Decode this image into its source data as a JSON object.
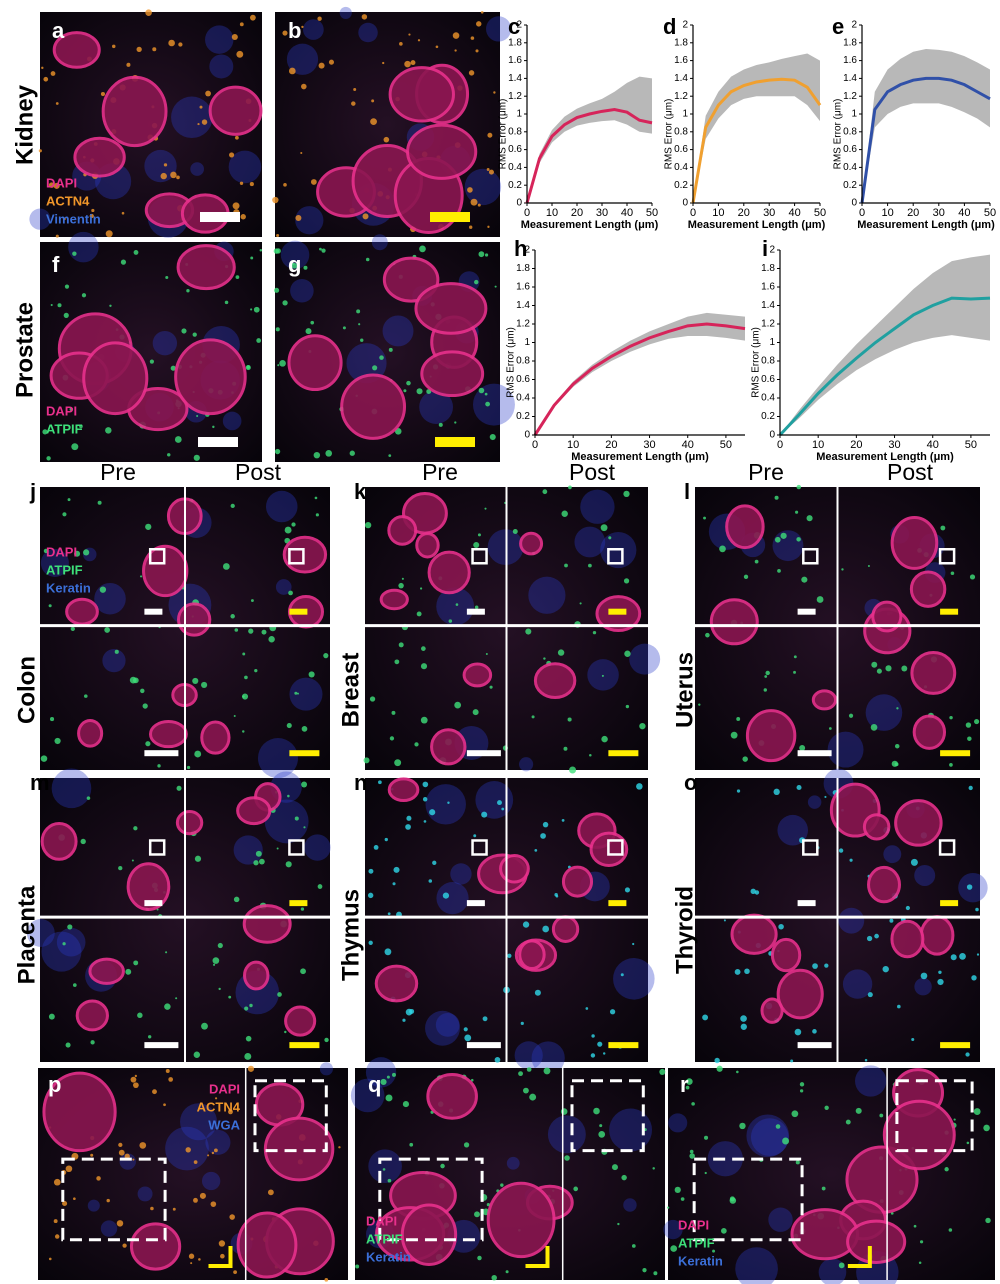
{
  "image_panels": [
    {
      "letter": "a",
      "tissue": "Kidney",
      "legend": [
        {
          "text": "DAPI",
          "color": "#e8308c"
        },
        {
          "text": "ACTN4",
          "color": "#f0962a"
        },
        {
          "text": "Vimentin",
          "color": "#3b6fd8"
        }
      ]
    },
    {
      "letter": "b"
    },
    {
      "letter": "f",
      "tissue": "Prostate",
      "legend": [
        {
          "text": "DAPI",
          "color": "#e8308c"
        },
        {
          "text": "ATPIF",
          "color": "#3ee07a"
        }
      ]
    },
    {
      "letter": "g"
    },
    {
      "letter": "j",
      "tissue": "Colon",
      "headers": [
        "Pre",
        "Post"
      ],
      "legend": [
        {
          "text": "DAPI",
          "color": "#e8308c"
        },
        {
          "text": "ATPIF",
          "color": "#3ee07a"
        },
        {
          "text": "Keratin",
          "color": "#3b6fd8"
        }
      ]
    },
    {
      "letter": "k",
      "tissue": "Breast",
      "headers": [
        "Pre",
        "Post"
      ]
    },
    {
      "letter": "l",
      "tissue": "Uterus",
      "headers": [
        "Pre",
        "Post"
      ]
    },
    {
      "letter": "m",
      "tissue": "Placenta"
    },
    {
      "letter": "n",
      "tissue": "Thymus"
    },
    {
      "letter": "o",
      "tissue": "Thyroid"
    },
    {
      "letter": "p",
      "legend": [
        {
          "text": "DAPI",
          "color": "#e8308c"
        },
        {
          "text": "ACTN4",
          "color": "#f0962a"
        },
        {
          "text": "WGA",
          "color": "#3b6fd8"
        }
      ]
    },
    {
      "letter": "q",
      "legend": [
        {
          "text": "DAPI",
          "color": "#e8308c"
        },
        {
          "text": "ATPIF",
          "color": "#3ee07a"
        },
        {
          "text": "Keratin",
          "color": "#3b6fd8"
        }
      ]
    },
    {
      "letter": "r",
      "legend": [
        {
          "text": "DAPI",
          "color": "#e8308c"
        },
        {
          "text": "ATPIF",
          "color": "#3ee07a"
        },
        {
          "text": "Keratin",
          "color": "#3b6fd8"
        }
      ]
    }
  ],
  "chart_data": [
    {
      "type": "line",
      "label": "c",
      "x_label": "Measurement Length (μm)",
      "y_label": "RMS Error (μm)",
      "xlim": [
        0,
        50
      ],
      "ylim": [
        0,
        2
      ],
      "xticks": [
        0,
        10,
        20,
        30,
        40,
        50
      ],
      "yticks": [
        0,
        0.2,
        0.4,
        0.6,
        0.8,
        1,
        1.2,
        1.4,
        1.6,
        1.8,
        2
      ],
      "x": [
        0,
        5,
        10,
        15,
        20,
        25,
        30,
        35,
        40,
        45,
        50
      ],
      "series": [
        {
          "color": "#d6245a",
          "band_color": "#b8b8b8",
          "values": [
            0,
            0.5,
            0.75,
            0.88,
            0.96,
            1.0,
            1.03,
            1.05,
            1.02,
            0.93,
            0.9
          ],
          "band_low": [
            0,
            0.45,
            0.68,
            0.8,
            0.87,
            0.9,
            0.92,
            0.93,
            0.88,
            0.8,
            0.78
          ],
          "band_high": [
            0,
            0.55,
            0.82,
            0.97,
            1.06,
            1.12,
            1.17,
            1.25,
            1.35,
            1.42,
            1.4
          ]
        }
      ]
    },
    {
      "type": "line",
      "label": "d",
      "x_label": "Measurement Length (μm)",
      "y_label": "RMS Error (μm)",
      "xlim": [
        0,
        50
      ],
      "ylim": [
        0,
        2
      ],
      "xticks": [
        0,
        10,
        20,
        30,
        40,
        50
      ],
      "yticks": [
        0,
        0.2,
        0.4,
        0.6,
        0.8,
        1,
        1.2,
        1.4,
        1.6,
        1.8,
        2
      ],
      "x": [
        0,
        5,
        10,
        15,
        20,
        25,
        30,
        35,
        40,
        45,
        50
      ],
      "series": [
        {
          "color": "#f0a030",
          "band_color": "#b8b8b8",
          "values": [
            0,
            0.85,
            1.1,
            1.25,
            1.32,
            1.36,
            1.38,
            1.39,
            1.38,
            1.3,
            1.1
          ],
          "band_low": [
            0,
            0.72,
            0.95,
            1.1,
            1.17,
            1.2,
            1.2,
            1.2,
            1.2,
            1.1,
            0.92
          ],
          "band_high": [
            0,
            0.98,
            1.25,
            1.42,
            1.5,
            1.55,
            1.58,
            1.62,
            1.65,
            1.68,
            1.6
          ]
        }
      ]
    },
    {
      "type": "line",
      "label": "e",
      "x_label": "Measurement Length (μm)",
      "y_label": "RMS Error (μm)",
      "xlim": [
        0,
        50
      ],
      "ylim": [
        0,
        2
      ],
      "xticks": [
        0,
        10,
        20,
        30,
        40,
        50
      ],
      "yticks": [
        0,
        0.2,
        0.4,
        0.6,
        0.8,
        1,
        1.2,
        1.4,
        1.6,
        1.8,
        2
      ],
      "x": [
        0,
        5,
        10,
        15,
        20,
        25,
        30,
        35,
        40,
        45,
        50
      ],
      "series": [
        {
          "color": "#3050a8",
          "band_color": "#b8b8b8",
          "values": [
            0,
            1.05,
            1.25,
            1.33,
            1.38,
            1.4,
            1.4,
            1.38,
            1.33,
            1.25,
            1.17
          ],
          "band_low": [
            0,
            0.85,
            1.0,
            1.08,
            1.12,
            1.12,
            1.12,
            1.08,
            1.02,
            0.95,
            0.85
          ],
          "band_high": [
            0,
            1.25,
            1.5,
            1.62,
            1.7,
            1.73,
            1.72,
            1.7,
            1.65,
            1.58,
            1.5
          ]
        }
      ]
    },
    {
      "type": "line",
      "label": "h",
      "x_label": "Measurement Length (μm)",
      "y_label": "RMS Error (μm)",
      "xlim": [
        0,
        55
      ],
      "ylim": [
        0,
        2
      ],
      "xticks": [
        0,
        10,
        20,
        30,
        40,
        50
      ],
      "yticks": [
        0,
        0.2,
        0.4,
        0.6,
        0.8,
        1,
        1.2,
        1.4,
        1.6,
        1.8,
        2
      ],
      "x": [
        0,
        5,
        10,
        15,
        20,
        25,
        30,
        35,
        40,
        45,
        50,
        55
      ],
      "series": [
        {
          "color": "#d6245a",
          "band_color": "#b8b8b8",
          "values": [
            0,
            0.32,
            0.55,
            0.72,
            0.85,
            0.96,
            1.05,
            1.12,
            1.18,
            1.2,
            1.18,
            1.15
          ],
          "band_low": [
            0,
            0.3,
            0.52,
            0.68,
            0.8,
            0.9,
            0.98,
            1.04,
            1.07,
            1.07,
            1.05,
            1.02
          ],
          "band_high": [
            0,
            0.34,
            0.58,
            0.76,
            0.9,
            1.02,
            1.12,
            1.2,
            1.28,
            1.32,
            1.3,
            1.28
          ]
        }
      ]
    },
    {
      "type": "line",
      "label": "i",
      "x_label": "Measurement Length (μm)",
      "y_label": "RMS Error (μm)",
      "xlim": [
        0,
        55
      ],
      "ylim": [
        0,
        2
      ],
      "xticks": [
        0,
        10,
        20,
        30,
        40,
        50
      ],
      "yticks": [
        0,
        0.2,
        0.4,
        0.6,
        0.8,
        1,
        1.2,
        1.4,
        1.6,
        1.8,
        2
      ],
      "x": [
        0,
        5,
        10,
        15,
        20,
        25,
        30,
        35,
        40,
        45,
        50,
        55
      ],
      "series": [
        {
          "color": "#20a0a0",
          "band_color": "#b8b8b8",
          "values": [
            0,
            0.22,
            0.45,
            0.65,
            0.83,
            1.0,
            1.15,
            1.3,
            1.4,
            1.48,
            1.47,
            1.48
          ],
          "band_low": [
            0,
            0.18,
            0.38,
            0.55,
            0.7,
            0.82,
            0.92,
            1.0,
            1.05,
            1.08,
            1.05,
            1.02
          ],
          "band_high": [
            0,
            0.27,
            0.52,
            0.76,
            0.98,
            1.18,
            1.38,
            1.58,
            1.75,
            1.88,
            1.92,
            1.95
          ]
        }
      ]
    }
  ]
}
